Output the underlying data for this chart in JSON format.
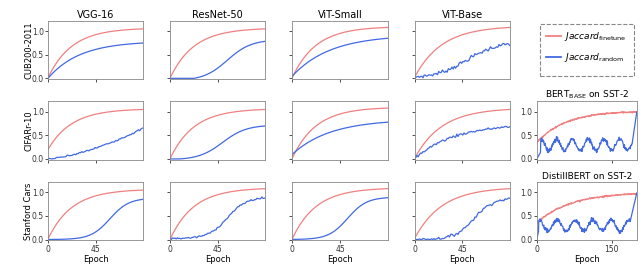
{
  "col_titles": [
    "VGG-16",
    "ResNet-50",
    "ViT-Small",
    "ViT-Base"
  ],
  "row_labels": [
    "CUB200-2011",
    "CIFARr-10",
    "Stanford Cars"
  ],
  "x_label": "Epoch",
  "color_finetune": "#f08080",
  "color_random": "#4169e1",
  "bert_title": "BERT$_{\\mathrm{BASE}}$ on SST-2",
  "distilbert_title": "DistillBERT on SST-2",
  "legend_ft": "$\\mathit{Jaccard}_{\\mathrm{finetune}}$",
  "legend_rnd": "$\\mathit{Jaccard}_{\\mathrm{random}}$"
}
